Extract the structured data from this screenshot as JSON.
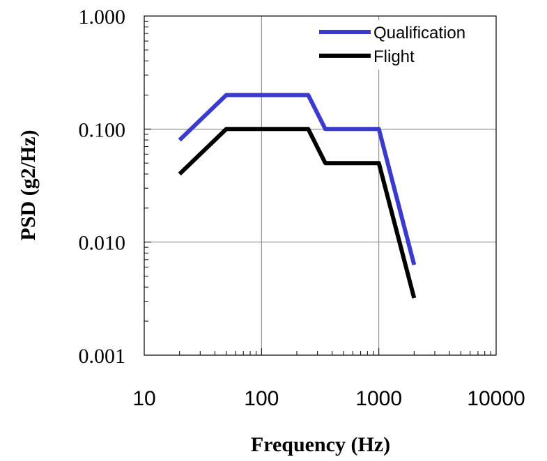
{
  "chart_data": {
    "type": "line",
    "title": "",
    "xlabel": "Frequency (Hz)",
    "ylabel": "PSD (g2/Hz)",
    "x_scale": "log",
    "y_scale": "log",
    "xlim": [
      10,
      10000
    ],
    "ylim": [
      0.001,
      1
    ],
    "x_ticks": [
      "10",
      "100",
      "1000",
      "10000"
    ],
    "y_ticks": [
      "0.001",
      "0.010",
      "0.100",
      "1.000"
    ],
    "grid": true,
    "legend_position": "top-right",
    "series": [
      {
        "name": "Qualification",
        "color": "#3a3acc",
        "x": [
          20,
          50,
          250,
          350,
          1000,
          2000
        ],
        "y": [
          0.08,
          0.2,
          0.2,
          0.1,
          0.1,
          0.0063
        ]
      },
      {
        "name": "Flight",
        "color": "#000000",
        "x": [
          20,
          50,
          250,
          350,
          1000,
          2000
        ],
        "y": [
          0.04,
          0.1,
          0.1,
          0.05,
          0.05,
          0.0032
        ]
      }
    ]
  }
}
